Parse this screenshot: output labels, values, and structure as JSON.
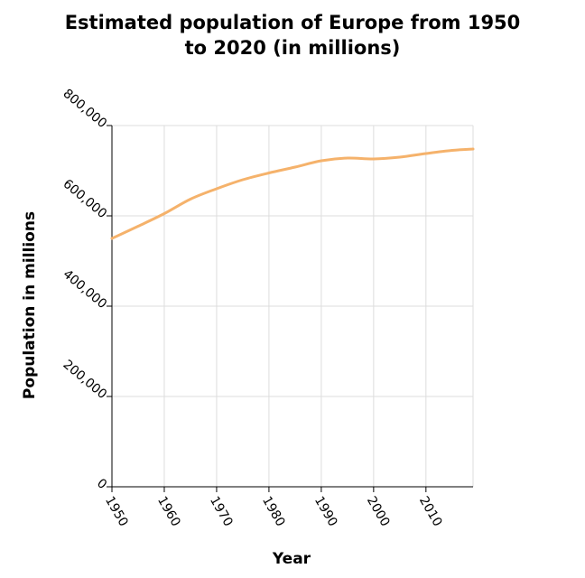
{
  "chart_data": {
    "type": "line",
    "title_line1": "Estimated population of Europe from 1950",
    "title_line2": "to 2020 (in millions)",
    "xlabel": "Year",
    "ylabel": "Population in millions",
    "xlim": [
      1950,
      2019
    ],
    "ylim": [
      0,
      800000
    ],
    "x_ticks": [
      1950,
      1960,
      1970,
      1980,
      1990,
      2000,
      2010
    ],
    "x_tick_labels": [
      "1950",
      "1960",
      "1970",
      "1980",
      "1990",
      "2000",
      "2010"
    ],
    "y_ticks": [
      0,
      200000,
      400000,
      600000,
      800000
    ],
    "y_tick_labels": [
      "0",
      "200,000",
      "400,000",
      "600,000",
      "800,000"
    ],
    "grid": true,
    "series": [
      {
        "color": "#f5b26b",
        "x": [
          1950,
          1955,
          1960,
          1965,
          1970,
          1975,
          1980,
          1985,
          1990,
          1995,
          2000,
          2005,
          2010,
          2015,
          2019
        ],
        "y": [
          550000,
          577000,
          605000,
          637000,
          660000,
          680000,
          695000,
          708000,
          722000,
          728000,
          726000,
          730000,
          738000,
          745000,
          748000
        ]
      }
    ]
  }
}
